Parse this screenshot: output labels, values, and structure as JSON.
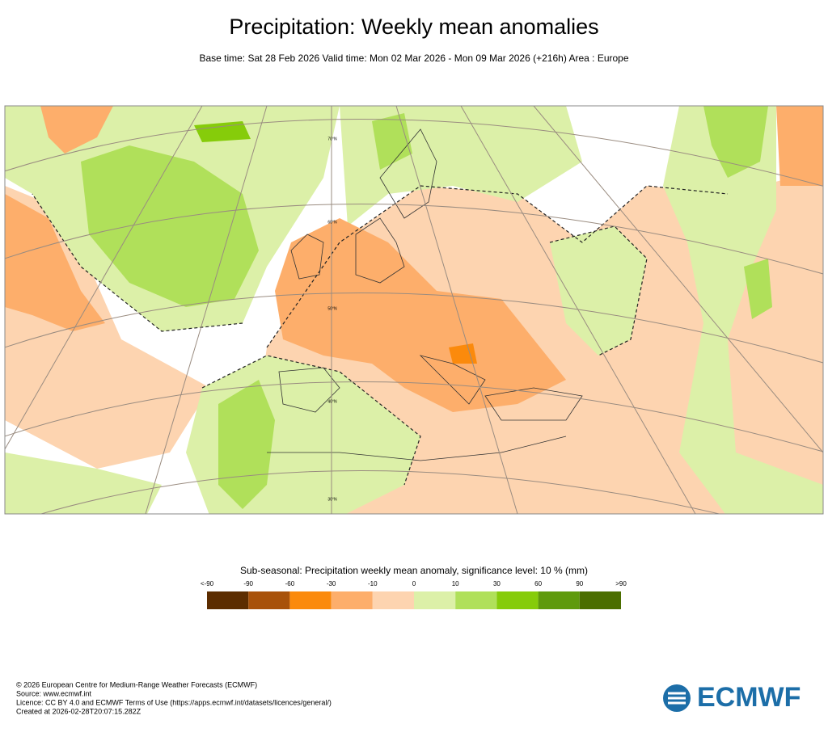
{
  "header": {
    "title": "Precipitation: Weekly mean anomalies",
    "subtitle": "Base time: Sat 28 Feb 2026 Valid time: Mon 02 Mar 2026 - Mon 09 Mar 2026 (+216h) Area : Europe"
  },
  "map": {
    "latitude_labels": [
      "70°N",
      "60°N",
      "50°N",
      "40°N",
      "30°N"
    ]
  },
  "legend": {
    "title": "Sub-seasonal: Precipitation weekly mean anomaly, significance level: 10 % (mm)",
    "labels": [
      "<-90",
      "-90",
      "-60",
      "-30",
      "-10",
      "0",
      "10",
      "30",
      "60",
      "90",
      ">90"
    ],
    "colors": [
      "#5c2d00",
      "#a8520a",
      "#fb8a0c",
      "#fdae6b",
      "#fdd4b0",
      "#dcf0a8",
      "#b0e05a",
      "#86cc0a",
      "#5f9a0c",
      "#4b6e00"
    ]
  },
  "footer": {
    "lines": [
      "© 2026 European Centre for Medium-Range Weather Forecasts (ECMWF)",
      "Source: www.ecmwf.int",
      "Licence: CC BY 4.0 and ECMWF Terms of Use (https://apps.ecmwf.int/datasets/licences/general/)",
      "Created at 2026-02-28T20:07:15.282Z"
    ]
  },
  "logo": {
    "text": "ECMWF"
  }
}
